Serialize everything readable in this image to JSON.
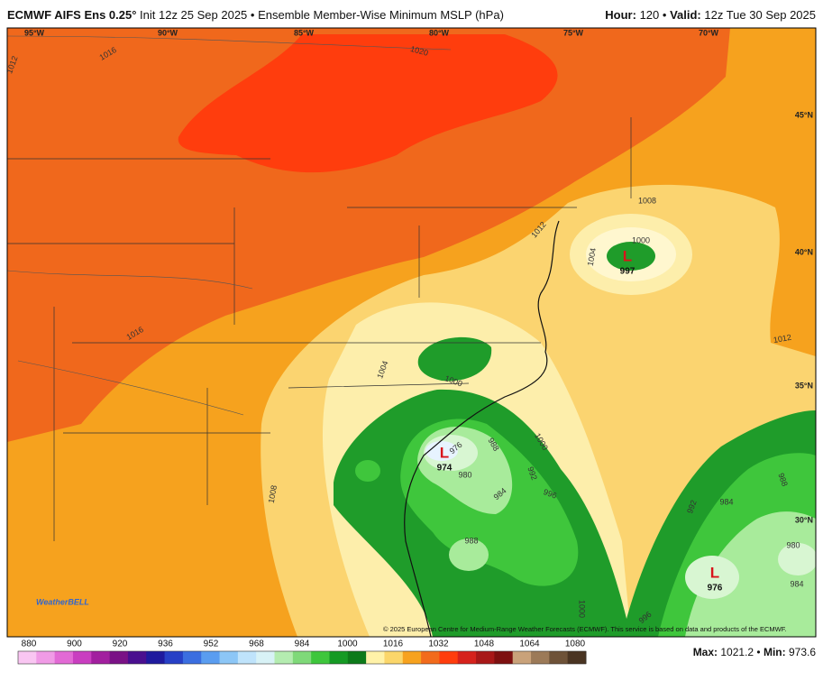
{
  "header": {
    "model": "ECMWF AIFS Ens 0.25°",
    "description": "Init 12z 25 Sep 2025 • Ensemble Member-Wise Minimum MSLP (hPa)",
    "hour_label": "Hour:",
    "hour": "120",
    "separator": "•",
    "valid_label": "Valid:",
    "valid": "12z Tue 30 Sep 2025"
  },
  "map": {
    "longitude_labels": [
      "95°W",
      "90°W",
      "85°W",
      "80°W",
      "75°W",
      "70°W"
    ],
    "latitude_labels": [
      "45°N",
      "40°N",
      "35°N",
      "30°N"
    ],
    "contour_labels": [
      "1012",
      "1016",
      "1020",
      "1016",
      "1012",
      "1008",
      "1000",
      "1004",
      "1012",
      "1004",
      "1000",
      "1000",
      "1008",
      "988",
      "992",
      "996",
      "984",
      "980",
      "976",
      "988",
      "992",
      "984",
      "988",
      "980",
      "984",
      "996",
      "1000"
    ],
    "lows": [
      {
        "symbol": "L",
        "value": "997"
      },
      {
        "symbol": "L",
        "value": "974"
      },
      {
        "symbol": "L",
        "value": "976"
      }
    ],
    "credit": "© 2025 European Centre for Medium-Range Weather Forecasts (ECMWF). This service is based on data and products of the ECMWF.",
    "logo": "WeatherBELL"
  },
  "colorbar": {
    "labels": [
      880,
      900,
      920,
      936,
      952,
      968,
      984,
      1000,
      1016,
      1032,
      1048,
      1064,
      1080
    ]
  },
  "stats": {
    "max_label": "Max:",
    "max": "1021.2",
    "separator": "•",
    "min_label": "Min:",
    "min": "973.6"
  }
}
